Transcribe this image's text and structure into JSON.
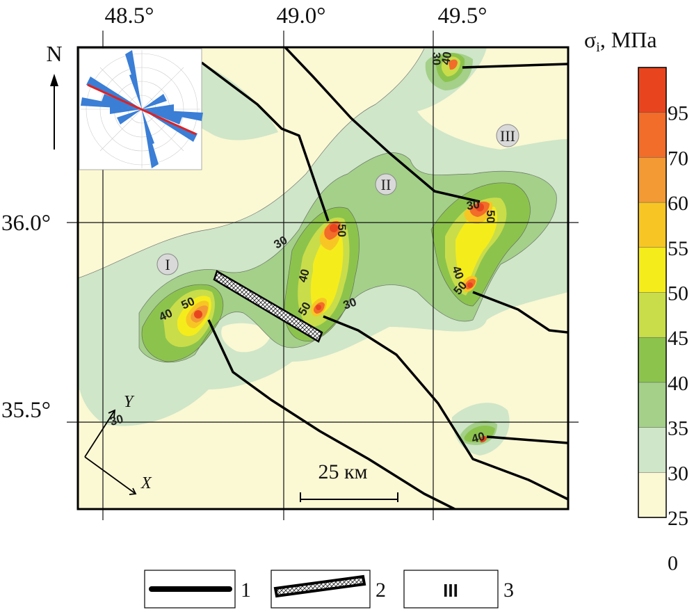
{
  "map": {
    "lon_ticks": [
      "48.5°",
      "49.0°",
      "49.5°"
    ],
    "lat_ticks": [
      "36.0°",
      "35.5°"
    ],
    "north_label": "N",
    "scale_label": "25 км",
    "axis_labels": {
      "x": "X",
      "y": "Y"
    },
    "zones": [
      "I",
      "II",
      "III"
    ],
    "contour_labels": [
      "30",
      "40",
      "50",
      "50",
      "30",
      "40",
      "50",
      "30",
      "30",
      "40",
      "50",
      "50",
      "40",
      "40",
      "30"
    ]
  },
  "colorbar": {
    "title": "σ",
    "title_sub": "i",
    "title_unit": ", МПа",
    "ticks": [
      "95",
      "70",
      "60",
      "55",
      "50",
      "45",
      "40",
      "35",
      "30",
      "25",
      "0"
    ],
    "colors": [
      "#e8451f",
      "#f26c2a",
      "#f39a35",
      "#f7c624",
      "#f5ec1c",
      "#c9dd4a",
      "#8cc34d",
      "#a4d08a",
      "#cfe6c8",
      "#fbf8d4"
    ]
  },
  "legend": {
    "items": [
      {
        "symbol": "fault-line",
        "number": "1"
      },
      {
        "symbol": "hatched-bar",
        "number": "2"
      },
      {
        "symbol": "zone-label",
        "text": "III",
        "number": "3"
      }
    ]
  }
}
